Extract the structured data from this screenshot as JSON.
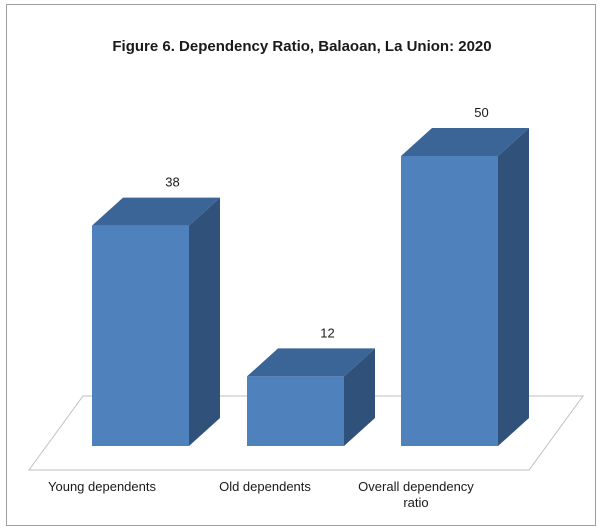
{
  "chart_data": {
    "type": "bar",
    "title": "Figure 6. Dependency Ratio, Balaoan, La Union: 2020",
    "categories": [
      "Young dependents",
      "Old dependents",
      "Overall dependency ratio"
    ],
    "category_lines": [
      [
        "Young dependents"
      ],
      [
        "Old dependents"
      ],
      [
        "Overall dependency",
        "ratio"
      ]
    ],
    "values": [
      38,
      12,
      50
    ],
    "value_labels": [
      "38",
      "12",
      "50"
    ],
    "xlabel": "",
    "ylabel": "",
    "ylim": [
      0,
      50
    ],
    "grid": false,
    "legend": "none",
    "style": "3d-column",
    "colors": {
      "front": "#4f81bd",
      "top": "#3a6596",
      "side": "#30527a",
      "floor_stroke": "#bfbfbf",
      "frame": "#9e9e9e"
    }
  }
}
